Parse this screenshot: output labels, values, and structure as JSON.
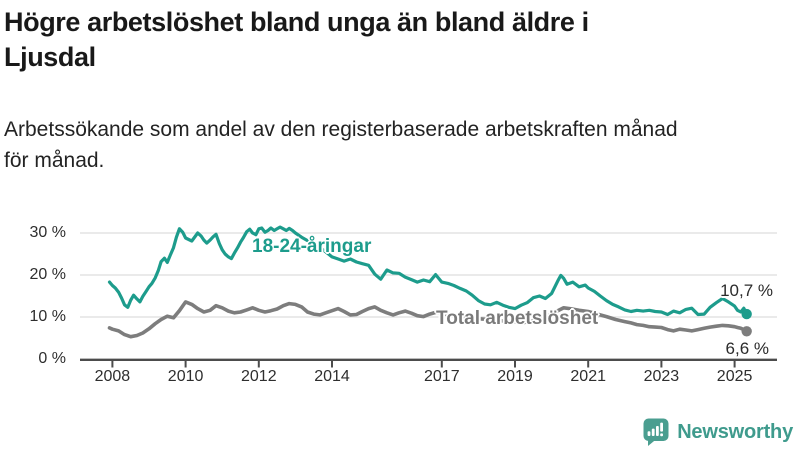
{
  "header": {
    "title": "Högre arbetslöshet bland unga än bland äldre i\nLjusdal",
    "subtitle": "Arbetssökande som andel av den registerbaserade arbetskraften månad\nför månad."
  },
  "colors": {
    "accent_teal": "#1d9c8c",
    "line_gray": "#7d7d7d",
    "logo_teal": "#4a9e90",
    "grid": "#e3e3e3",
    "axis": "#4c4c4c",
    "text": "#191919"
  },
  "footer": {
    "brand": "Newsworthy",
    "logo_icon": "speech-bubble-bar-chart-exclamation"
  },
  "chart_data": {
    "type": "line",
    "title": "Högre arbetslöshet bland unga än bland äldre i Ljusdal",
    "subtitle": "Arbetssökande som andel av den registerbaserade arbetskraften månad för månad.",
    "xlabel": "",
    "ylabel": "",
    "grid": "horizontal",
    "legend_position": "inline-labels",
    "x_axis": {
      "ticks": [
        2008,
        2010,
        2012,
        2014,
        2017,
        2019,
        2021,
        2023,
        2025
      ],
      "tick_labels": [
        "2008",
        "2010",
        "2012",
        "2014",
        "2017",
        "2019",
        "2021",
        "2023",
        "2025"
      ],
      "range": [
        2007.1,
        2026.2
      ]
    },
    "y_axis": {
      "ticks": [
        0,
        10,
        20,
        30
      ],
      "tick_labels": [
        "0 %",
        "10 %",
        "20 %",
        "30 %"
      ],
      "range": [
        0,
        32
      ]
    },
    "series": [
      {
        "id": "youth",
        "name": "18-24-åringar",
        "color": "#1d9c8c",
        "end_label": "10,7 %",
        "end_value": 10.7,
        "points": [
          [
            2007.92,
            18.3
          ],
          [
            2008.0,
            17.5
          ],
          [
            2008.08,
            16.9
          ],
          [
            2008.17,
            15.9
          ],
          [
            2008.25,
            14.5
          ],
          [
            2008.33,
            12.9
          ],
          [
            2008.42,
            12.3
          ],
          [
            2008.5,
            14.0
          ],
          [
            2008.58,
            15.2
          ],
          [
            2008.67,
            14.3
          ],
          [
            2008.75,
            13.6
          ],
          [
            2008.83,
            14.9
          ],
          [
            2008.92,
            16.1
          ],
          [
            2009.0,
            17.2
          ],
          [
            2009.08,
            18.0
          ],
          [
            2009.17,
            19.3
          ],
          [
            2009.25,
            21.0
          ],
          [
            2009.33,
            23.2
          ],
          [
            2009.42,
            24.0
          ],
          [
            2009.5,
            23.0
          ],
          [
            2009.58,
            24.7
          ],
          [
            2009.67,
            26.5
          ],
          [
            2009.75,
            29.0
          ],
          [
            2009.83,
            31.0
          ],
          [
            2009.92,
            30.2
          ],
          [
            2010.0,
            28.8
          ],
          [
            2010.17,
            28.1
          ],
          [
            2010.33,
            30.0
          ],
          [
            2010.42,
            29.3
          ],
          [
            2010.5,
            28.3
          ],
          [
            2010.58,
            27.6
          ],
          [
            2010.67,
            28.3
          ],
          [
            2010.75,
            29.1
          ],
          [
            2010.83,
            29.7
          ],
          [
            2010.92,
            27.5
          ],
          [
            2011.0,
            26.0
          ],
          [
            2011.08,
            25.0
          ],
          [
            2011.17,
            24.3
          ],
          [
            2011.25,
            23.9
          ],
          [
            2011.33,
            25.2
          ],
          [
            2011.42,
            26.5
          ],
          [
            2011.5,
            27.8
          ],
          [
            2011.58,
            28.9
          ],
          [
            2011.67,
            30.3
          ],
          [
            2011.75,
            30.9
          ],
          [
            2011.83,
            30.0
          ],
          [
            2011.92,
            29.6
          ],
          [
            2012.0,
            31.0
          ],
          [
            2012.08,
            31.2
          ],
          [
            2012.17,
            30.2
          ],
          [
            2012.25,
            30.6
          ],
          [
            2012.33,
            31.2
          ],
          [
            2012.42,
            30.6
          ],
          [
            2012.5,
            31.0
          ],
          [
            2012.58,
            31.4
          ],
          [
            2012.67,
            31.0
          ],
          [
            2012.75,
            30.6
          ],
          [
            2012.83,
            31.1
          ],
          [
            2012.92,
            30.6
          ],
          [
            2013.0,
            30.0
          ],
          [
            2013.17,
            29.0
          ],
          [
            2013.33,
            28.2
          ],
          [
            2013.5,
            27.5
          ],
          [
            2013.67,
            26.6
          ],
          [
            2013.83,
            25.5
          ],
          [
            2014.0,
            24.3
          ],
          [
            2014.17,
            23.8
          ],
          [
            2014.33,
            23.3
          ],
          [
            2014.5,
            23.8
          ],
          [
            2014.67,
            23.1
          ],
          [
            2014.83,
            22.7
          ],
          [
            2015.0,
            22.3
          ],
          [
            2015.17,
            20.2
          ],
          [
            2015.33,
            19.0
          ],
          [
            2015.5,
            21.2
          ],
          [
            2015.67,
            20.5
          ],
          [
            2015.83,
            20.4
          ],
          [
            2016.0,
            19.5
          ],
          [
            2016.17,
            18.9
          ],
          [
            2016.33,
            18.3
          ],
          [
            2016.5,
            18.8
          ],
          [
            2016.67,
            18.4
          ],
          [
            2016.83,
            20.1
          ],
          [
            2017.0,
            18.3
          ],
          [
            2017.17,
            18.0
          ],
          [
            2017.33,
            17.5
          ],
          [
            2017.5,
            16.8
          ],
          [
            2017.67,
            16.2
          ],
          [
            2017.83,
            15.2
          ],
          [
            2018.0,
            13.9
          ],
          [
            2018.17,
            13.1
          ],
          [
            2018.33,
            12.9
          ],
          [
            2018.5,
            13.5
          ],
          [
            2018.67,
            12.8
          ],
          [
            2018.83,
            12.3
          ],
          [
            2019.0,
            12.0
          ],
          [
            2019.17,
            12.8
          ],
          [
            2019.33,
            13.4
          ],
          [
            2019.5,
            14.6
          ],
          [
            2019.67,
            15.0
          ],
          [
            2019.83,
            14.4
          ],
          [
            2020.0,
            15.6
          ],
          [
            2020.17,
            18.6
          ],
          [
            2020.25,
            19.9
          ],
          [
            2020.33,
            19.2
          ],
          [
            2020.42,
            17.8
          ],
          [
            2020.58,
            18.3
          ],
          [
            2020.75,
            17.2
          ],
          [
            2020.92,
            17.6
          ],
          [
            2021.0,
            16.9
          ],
          [
            2021.17,
            16.1
          ],
          [
            2021.33,
            15.0
          ],
          [
            2021.5,
            13.9
          ],
          [
            2021.67,
            13.0
          ],
          [
            2021.83,
            12.4
          ],
          [
            2022.0,
            11.7
          ],
          [
            2022.17,
            11.3
          ],
          [
            2022.33,
            11.6
          ],
          [
            2022.5,
            11.4
          ],
          [
            2022.67,
            11.6
          ],
          [
            2022.83,
            11.3
          ],
          [
            2023.0,
            11.2
          ],
          [
            2023.17,
            10.6
          ],
          [
            2023.33,
            11.4
          ],
          [
            2023.5,
            11.0
          ],
          [
            2023.67,
            11.8
          ],
          [
            2023.83,
            12.1
          ],
          [
            2024.0,
            10.6
          ],
          [
            2024.17,
            10.7
          ],
          [
            2024.33,
            12.3
          ],
          [
            2024.5,
            13.4
          ],
          [
            2024.67,
            14.4
          ],
          [
            2024.83,
            13.6
          ],
          [
            2025.0,
            12.6
          ],
          [
            2025.08,
            11.6
          ],
          [
            2025.17,
            11.2
          ],
          [
            2025.25,
            12.1
          ],
          [
            2025.33,
            10.7
          ]
        ]
      },
      {
        "id": "total",
        "name": "Total arbetslöshet",
        "color": "#7d7d7d",
        "end_label": "6,6 %",
        "end_value": 6.6,
        "points": [
          [
            2007.92,
            7.4
          ],
          [
            2008.0,
            7.1
          ],
          [
            2008.17,
            6.7
          ],
          [
            2008.33,
            5.8
          ],
          [
            2008.5,
            5.3
          ],
          [
            2008.67,
            5.6
          ],
          [
            2008.83,
            6.2
          ],
          [
            2009.0,
            7.2
          ],
          [
            2009.17,
            8.4
          ],
          [
            2009.33,
            9.4
          ],
          [
            2009.5,
            10.2
          ],
          [
            2009.67,
            9.8
          ],
          [
            2009.83,
            11.5
          ],
          [
            2010.0,
            13.6
          ],
          [
            2010.17,
            13.0
          ],
          [
            2010.33,
            12.0
          ],
          [
            2010.5,
            11.2
          ],
          [
            2010.67,
            11.6
          ],
          [
            2010.83,
            12.7
          ],
          [
            2011.0,
            12.2
          ],
          [
            2011.17,
            11.4
          ],
          [
            2011.33,
            11.0
          ],
          [
            2011.5,
            11.2
          ],
          [
            2011.67,
            11.7
          ],
          [
            2011.83,
            12.2
          ],
          [
            2012.0,
            11.6
          ],
          [
            2012.17,
            11.2
          ],
          [
            2012.33,
            11.5
          ],
          [
            2012.5,
            11.9
          ],
          [
            2012.67,
            12.7
          ],
          [
            2012.83,
            13.2
          ],
          [
            2013.0,
            13.0
          ],
          [
            2013.17,
            12.4
          ],
          [
            2013.33,
            11.2
          ],
          [
            2013.5,
            10.7
          ],
          [
            2013.67,
            10.5
          ],
          [
            2013.83,
            11.0
          ],
          [
            2014.0,
            11.5
          ],
          [
            2014.17,
            12.0
          ],
          [
            2014.33,
            11.3
          ],
          [
            2014.5,
            10.5
          ],
          [
            2014.67,
            10.6
          ],
          [
            2014.83,
            11.3
          ],
          [
            2015.0,
            12.0
          ],
          [
            2015.17,
            12.4
          ],
          [
            2015.33,
            11.6
          ],
          [
            2015.5,
            11.0
          ],
          [
            2015.67,
            10.5
          ],
          [
            2015.83,
            11.0
          ],
          [
            2016.0,
            11.4
          ],
          [
            2016.17,
            10.9
          ],
          [
            2016.33,
            10.3
          ],
          [
            2016.5,
            10.1
          ],
          [
            2016.67,
            10.7
          ],
          [
            2016.83,
            11.1
          ],
          [
            2017.0,
            10.8
          ],
          [
            2017.25,
            10.3
          ],
          [
            2017.5,
            10.0
          ],
          [
            2017.75,
            9.8
          ],
          [
            2018.0,
            9.6
          ],
          [
            2018.25,
            9.4
          ],
          [
            2018.5,
            9.2
          ],
          [
            2018.75,
            9.0
          ],
          [
            2019.0,
            8.9
          ],
          [
            2019.25,
            8.7
          ],
          [
            2019.5,
            9.1
          ],
          [
            2019.75,
            9.8
          ],
          [
            2020.0,
            10.6
          ],
          [
            2020.17,
            11.5
          ],
          [
            2020.33,
            12.2
          ],
          [
            2020.5,
            12.0
          ],
          [
            2020.75,
            11.6
          ],
          [
            2021.0,
            11.3
          ],
          [
            2021.25,
            10.7
          ],
          [
            2021.5,
            10.1
          ],
          [
            2021.75,
            9.4
          ],
          [
            2022.0,
            8.9
          ],
          [
            2022.17,
            8.6
          ],
          [
            2022.33,
            8.2
          ],
          [
            2022.5,
            8.0
          ],
          [
            2022.67,
            7.7
          ],
          [
            2022.83,
            7.6
          ],
          [
            2023.0,
            7.5
          ],
          [
            2023.17,
            7.0
          ],
          [
            2023.33,
            6.7
          ],
          [
            2023.5,
            7.1
          ],
          [
            2023.67,
            6.9
          ],
          [
            2023.83,
            6.7
          ],
          [
            2024.0,
            7.0
          ],
          [
            2024.17,
            7.3
          ],
          [
            2024.33,
            7.6
          ],
          [
            2024.5,
            7.8
          ],
          [
            2024.67,
            8.0
          ],
          [
            2024.83,
            7.9
          ],
          [
            2025.0,
            7.7
          ],
          [
            2025.08,
            7.5
          ],
          [
            2025.17,
            7.3
          ],
          [
            2025.25,
            7.0
          ],
          [
            2025.33,
            6.6
          ]
        ]
      }
    ]
  }
}
